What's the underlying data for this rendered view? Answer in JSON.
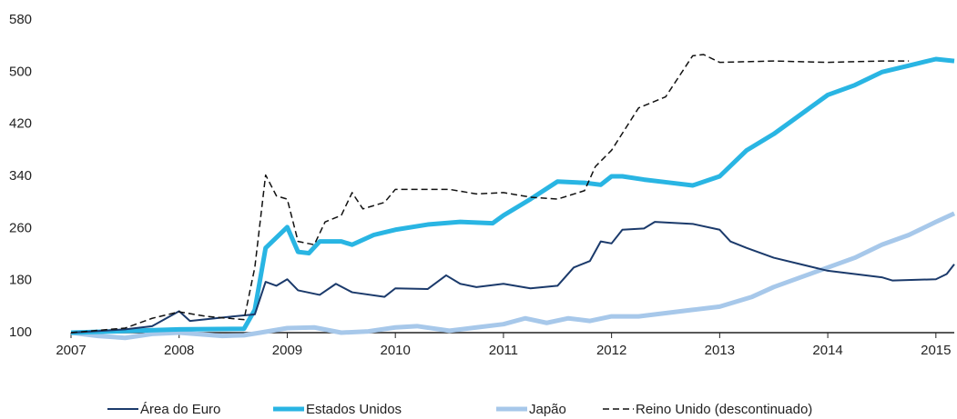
{
  "chart_data": {
    "type": "line",
    "xlim": [
      2007,
      2015.17
    ],
    "xticks": [
      2007,
      2008,
      2009,
      2010,
      2011,
      2012,
      2013,
      2014,
      2015
    ],
    "ylim": [
      100,
      580
    ],
    "yticks": [
      100,
      180,
      260,
      340,
      420,
      500,
      580
    ],
    "series": [
      {
        "name": "Área do Euro",
        "color": "#1b3a6b",
        "width": 2,
        "dash": false,
        "x": [
          2007,
          2007.5,
          2007.75,
          2008,
          2008.1,
          2008.5,
          2008.7,
          2008.8,
          2008.9,
          2009,
          2009.1,
          2009.3,
          2009.45,
          2009.6,
          2009.9,
          2010,
          2010.3,
          2010.47,
          2010.6,
          2010.75,
          2011,
          2011.25,
          2011.5,
          2011.65,
          2011.8,
          2011.9,
          2012,
          2012.1,
          2012.3,
          2012.4,
          2012.75,
          2013,
          2013.1,
          2013.25,
          2013.5,
          2013.75,
          2014,
          2014.25,
          2014.5,
          2014.6,
          2015,
          2015.1,
          2015.17
        ],
        "values": [
          100,
          105,
          110,
          133,
          118,
          125,
          128,
          178,
          172,
          182,
          165,
          158,
          175,
          162,
          155,
          168,
          167,
          188,
          175,
          170,
          175,
          168,
          172,
          200,
          210,
          240,
          237,
          258,
          260,
          270,
          267,
          258,
          240,
          230,
          215,
          205,
          195,
          190,
          185,
          180,
          182,
          190,
          205
        ]
      },
      {
        "name": "Estados Unidos",
        "color": "#29b5e3",
        "width": 5,
        "dash": false,
        "x": [
          2007,
          2008,
          2008.6,
          2008.7,
          2008.8,
          2009,
          2009.1,
          2009.2,
          2009.3,
          2009.5,
          2009.6,
          2009.8,
          2010,
          2010.3,
          2010.6,
          2010.9,
          2011,
          2011.25,
          2011.5,
          2011.75,
          2011.9,
          2012,
          2012.1,
          2012.3,
          2012.5,
          2012.75,
          2013,
          2013.25,
          2013.5,
          2013.75,
          2014,
          2014.25,
          2014.5,
          2014.75,
          2015,
          2015.17
        ],
        "values": [
          100,
          105,
          106,
          135,
          230,
          262,
          224,
          222,
          240,
          240,
          235,
          250,
          258,
          266,
          270,
          268,
          280,
          305,
          332,
          330,
          327,
          340,
          340,
          335,
          331,
          326,
          340,
          380,
          405,
          435,
          465,
          480,
          500,
          510,
          520,
          517
        ]
      },
      {
        "name": "Japão",
        "color": "#a7c8ea",
        "width": 5,
        "dash": false,
        "x": [
          2007,
          2007.25,
          2007.5,
          2007.75,
          2008,
          2008.4,
          2008.6,
          2008.75,
          2009,
          2009.25,
          2009.5,
          2009.75,
          2010,
          2010.2,
          2010.5,
          2010.75,
          2011,
          2011.2,
          2011.4,
          2011.6,
          2011.8,
          2012,
          2012.25,
          2012.5,
          2012.75,
          2013,
          2013.3,
          2013.5,
          2013.75,
          2014,
          2014.25,
          2014.5,
          2014.75,
          2015,
          2015.17
        ],
        "values": [
          100,
          95,
          92,
          98,
          100,
          95,
          96,
          100,
          107,
          108,
          100,
          102,
          108,
          110,
          103,
          108,
          113,
          122,
          115,
          122,
          118,
          125,
          125,
          130,
          135,
          140,
          155,
          170,
          185,
          200,
          215,
          235,
          250,
          270,
          283
        ]
      },
      {
        "name": "Reino Unido (descontinuado)",
        "color": "#111111",
        "width": 1.5,
        "dash": true,
        "x": [
          2007,
          2007.5,
          2007.75,
          2008,
          2008.25,
          2008.6,
          2008.7,
          2008.8,
          2008.9,
          2009,
          2009.1,
          2009.25,
          2009.35,
          2009.5,
          2009.6,
          2009.7,
          2009.9,
          2010,
          2010.5,
          2010.75,
          2011,
          2011.25,
          2011.5,
          2011.75,
          2011.85,
          2012,
          2012.25,
          2012.5,
          2012.75,
          2012.85,
          2013,
          2013.5,
          2014,
          2014.5,
          2014.75
        ],
        "values": [
          100,
          107,
          122,
          132,
          125,
          120,
          200,
          342,
          310,
          305,
          240,
          235,
          270,
          280,
          315,
          290,
          300,
          320,
          320,
          313,
          315,
          308,
          305,
          318,
          355,
          380,
          445,
          462,
          525,
          527,
          515,
          517,
          515,
          517,
          517
        ]
      }
    ]
  }
}
